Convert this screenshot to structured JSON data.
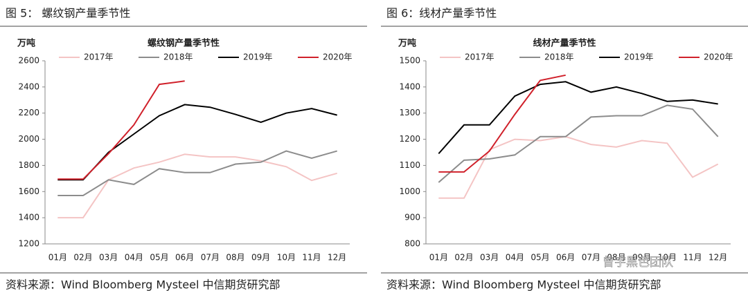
{
  "chart_data": [
    {
      "type": "line",
      "caption": "图 5：   螺纹钢产量季节性",
      "title": "螺纹钢产量季节性",
      "ylabel": "万吨",
      "source": "资料来源：Wind Bloomberg Mysteel 中信期货研究部",
      "categories": [
        "01月",
        "02月",
        "03月",
        "04月",
        "05月",
        "06月",
        "07月",
        "08月",
        "09月",
        "10月",
        "11月",
        "12月"
      ],
      "ylim": [
        1200,
        2600
      ],
      "yticks": [
        1200,
        1400,
        1600,
        1800,
        2000,
        2200,
        2400,
        2600
      ],
      "series": [
        {
          "name": "2017年",
          "color": "#f4c4c4",
          "values": [
            1400,
            1400,
            1690,
            1780,
            1825,
            1885,
            1865,
            1865,
            1835,
            1790,
            1685,
            1740
          ]
        },
        {
          "name": "2018年",
          "color": "#8c8c8c",
          "values": [
            1570,
            1570,
            1690,
            1655,
            1775,
            1745,
            1745,
            1810,
            1825,
            1910,
            1855,
            1910
          ]
        },
        {
          "name": "2019年",
          "color": "#000000",
          "values": [
            1690,
            1690,
            1900,
            2040,
            2180,
            2265,
            2245,
            2190,
            2130,
            2200,
            2235,
            2185
          ]
        },
        {
          "name": "2020年",
          "color": "#d0202a",
          "values": [
            1695,
            1695,
            1890,
            2110,
            2420,
            2445,
            null,
            null,
            null,
            null,
            null,
            null
          ]
        }
      ]
    },
    {
      "type": "line",
      "caption": "图 6：线材产量季节性",
      "title": "线材产量季节性",
      "ylabel": "万吨",
      "source": "资料来源：Wind Bloomberg Mysteel 中信期货研究部",
      "categories": [
        "01月",
        "02月",
        "03月",
        "04月",
        "05月",
        "06月",
        "07月",
        "08月",
        "09月",
        "10月",
        "11月",
        "12月"
      ],
      "ylim": [
        800,
        1500
      ],
      "yticks": [
        800,
        900,
        1000,
        1100,
        1200,
        1300,
        1400,
        1500
      ],
      "series": [
        {
          "name": "2017年",
          "color": "#f4c4c4",
          "values": [
            975,
            975,
            1160,
            1200,
            1195,
            1210,
            1180,
            1170,
            1195,
            1185,
            1055,
            1105
          ]
        },
        {
          "name": "2018年",
          "color": "#8c8c8c",
          "values": [
            1035,
            1120,
            1125,
            1140,
            1210,
            1210,
            1285,
            1290,
            1290,
            1330,
            1315,
            1210
          ]
        },
        {
          "name": "2019年",
          "color": "#000000",
          "values": [
            1145,
            1255,
            1255,
            1365,
            1410,
            1420,
            1380,
            1400,
            1375,
            1345,
            1350,
            1335
          ]
        },
        {
          "name": "2020年",
          "color": "#d0202a",
          "values": [
            1075,
            1075,
            1155,
            1295,
            1425,
            1445,
            null,
            null,
            null,
            null,
            null,
            null
          ]
        }
      ]
    }
  ],
  "watermark": "曾宇黑色团队"
}
